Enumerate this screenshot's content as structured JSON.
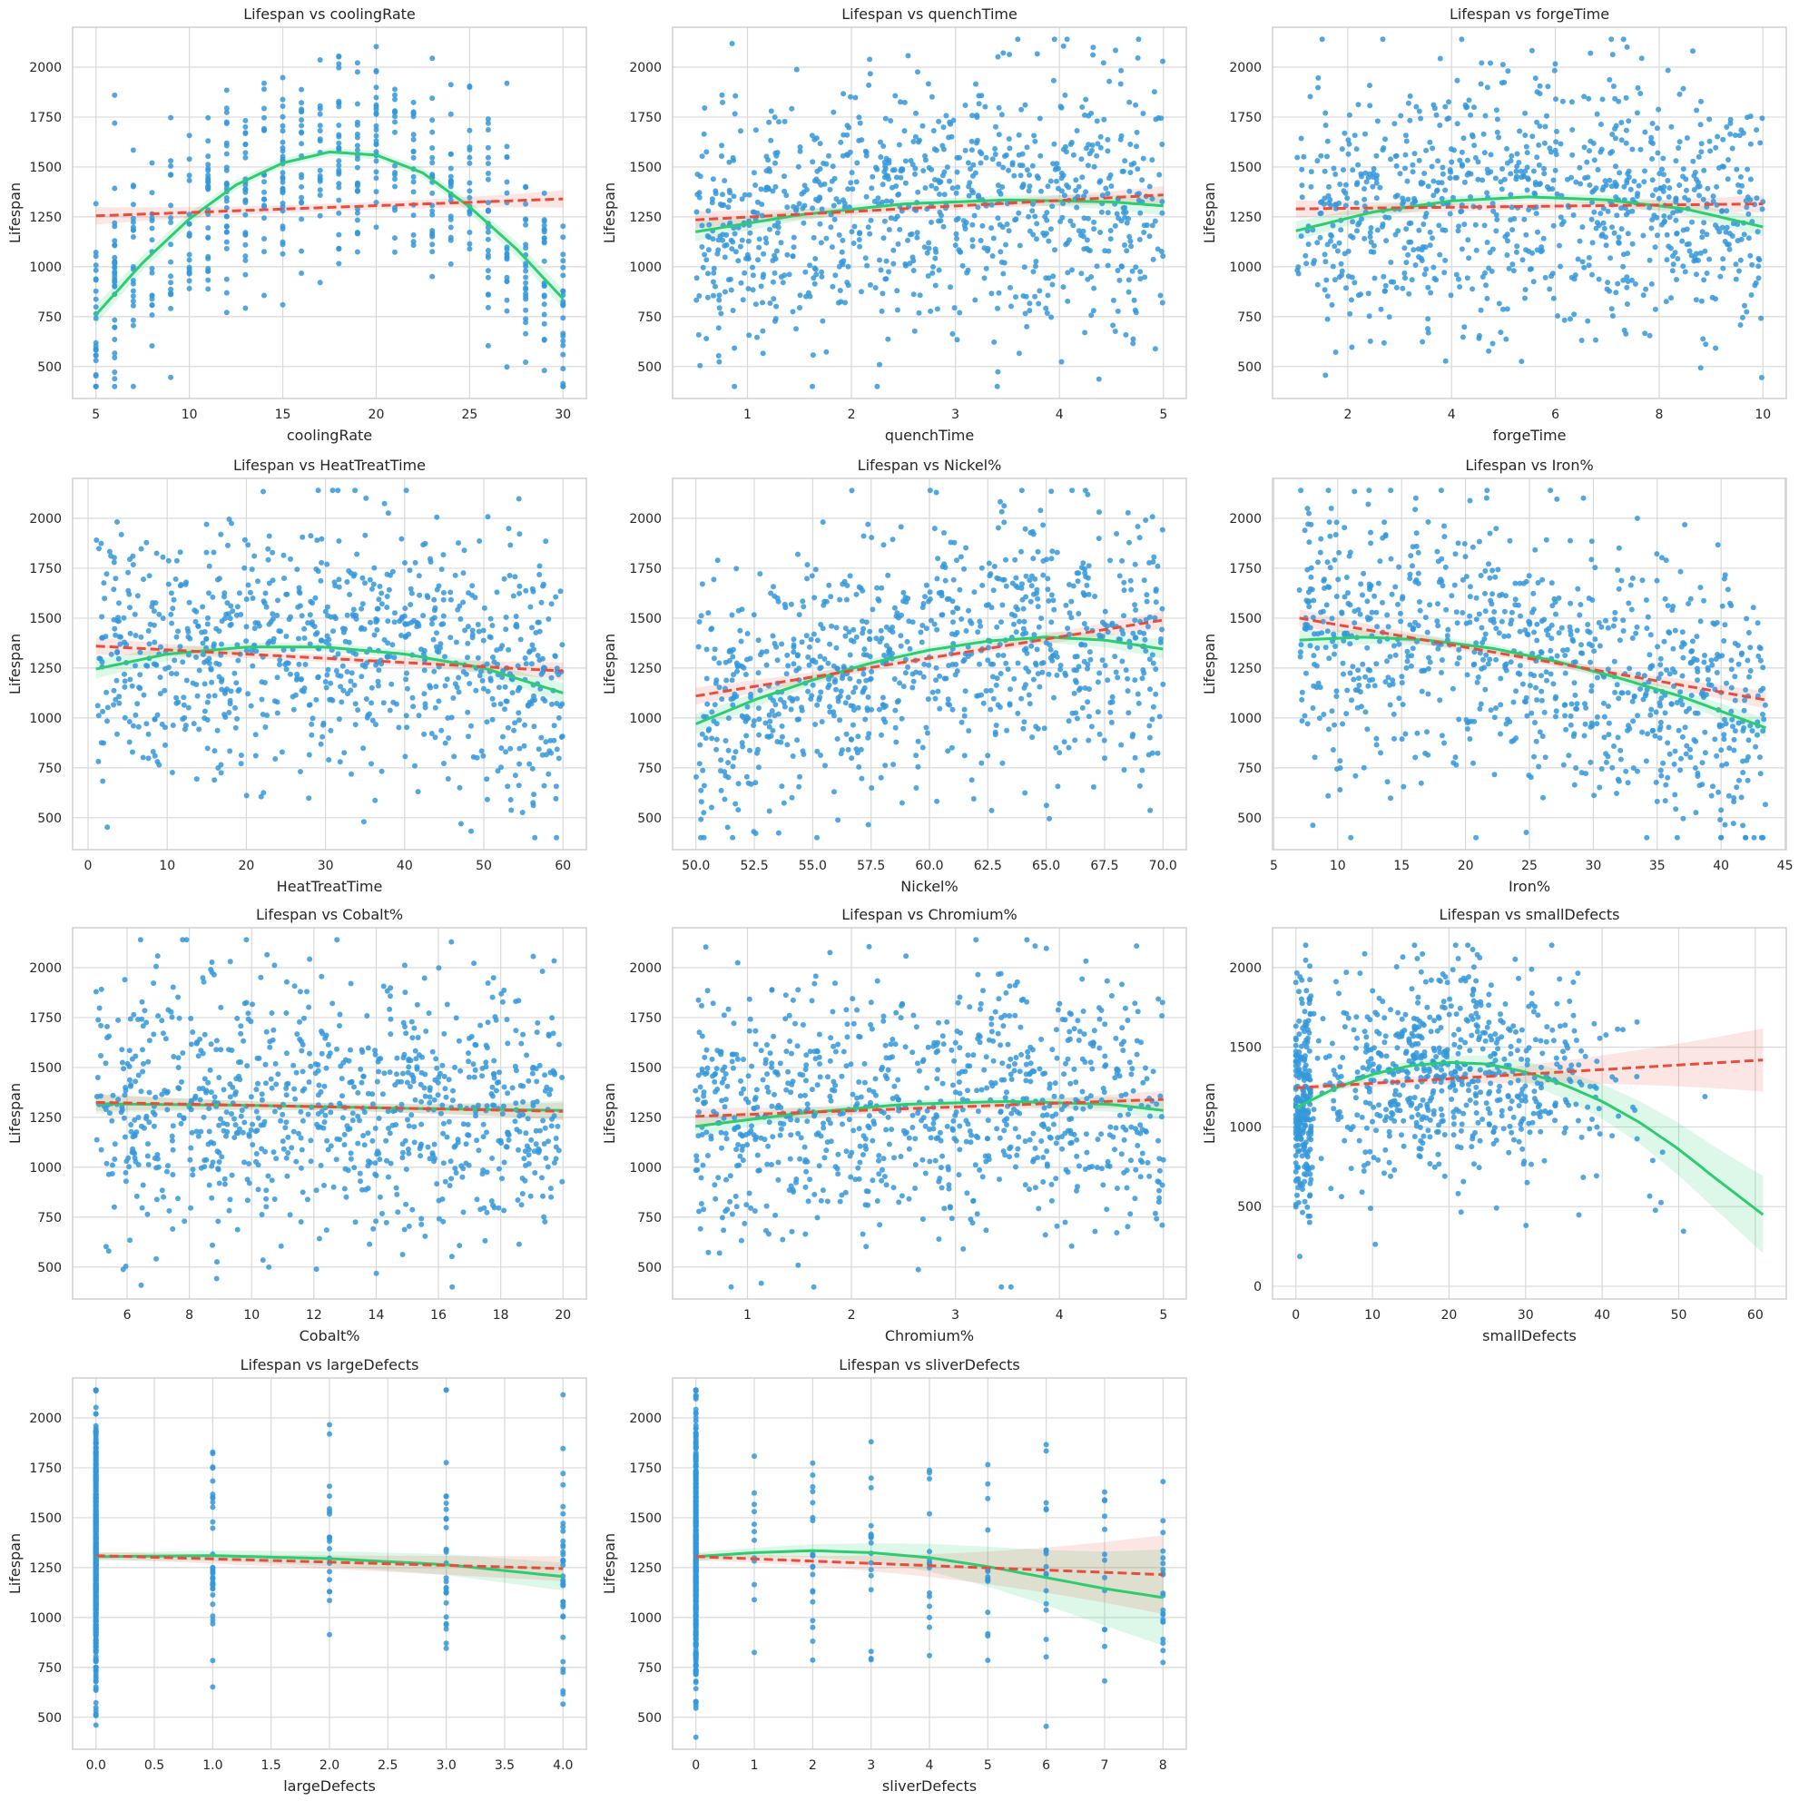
{
  "figure": {
    "colors": {
      "points": "#3498db",
      "linear_fit": "#e74c3c",
      "poly_fit": "#2ecc71",
      "grid": "#d9d9d9",
      "frame": "#cccccc"
    }
  },
  "chart_data": [
    {
      "type": "scatter",
      "title": "Lifespan vs coolingRate",
      "xlabel": "coolingRate",
      "ylabel": "Lifespan",
      "xlim": [
        3.75,
        31.25
      ],
      "ylim": [
        340,
        2200
      ],
      "xticks": [
        5,
        10,
        15,
        20,
        25,
        30
      ],
      "yticks": [
        500,
        750,
        1000,
        1250,
        1500,
        1750,
        2000
      ],
      "x_discrete": true,
      "x_min": 5,
      "x_max": 30,
      "y_center": 1300,
      "y_spread": 280,
      "n_points": 600,
      "seed": 11,
      "linear_fit": [
        [
          5,
          1255
        ],
        [
          30,
          1340
        ]
      ],
      "poly_fit": [
        [
          5,
          760
        ],
        [
          7.5,
          1020
        ],
        [
          10,
          1240
        ],
        [
          12.5,
          1410
        ],
        [
          15,
          1520
        ],
        [
          17.5,
          1575
        ],
        [
          20,
          1560
        ],
        [
          22.5,
          1470
        ],
        [
          25,
          1300
        ],
        [
          27.5,
          1090
        ],
        [
          30,
          840
        ]
      ],
      "ci": "narrow"
    },
    {
      "type": "scatter",
      "title": "Lifespan vs quenchTime",
      "xlabel": "quenchTime",
      "ylabel": "Lifespan",
      "xlim": [
        0.28,
        5.22
      ],
      "ylim": [
        340,
        2200
      ],
      "xticks": [
        1,
        2,
        3,
        4,
        5
      ],
      "yticks": [
        500,
        750,
        1000,
        1250,
        1500,
        1750,
        2000
      ],
      "x_discrete": false,
      "x_min": 0.5,
      "x_max": 5,
      "y_center": 1300,
      "y_spread": 320,
      "n_points": 900,
      "seed": 23,
      "linear_fit": [
        [
          0.5,
          1235
        ],
        [
          5,
          1360
        ]
      ],
      "poly_fit": [
        [
          0.5,
          1175
        ],
        [
          1.5,
          1260
        ],
        [
          2.5,
          1315
        ],
        [
          3.5,
          1335
        ],
        [
          4.5,
          1325
        ],
        [
          5,
          1305
        ]
      ],
      "ci": "narrow"
    },
    {
      "type": "scatter",
      "title": "Lifespan vs forgeTime",
      "xlabel": "forgeTime",
      "ylabel": "Lifespan",
      "xlim": [
        0.55,
        10.45
      ],
      "ylim": [
        340,
        2200
      ],
      "xticks": [
        2,
        4,
        6,
        8,
        10
      ],
      "yticks": [
        500,
        750,
        1000,
        1250,
        1500,
        1750,
        2000
      ],
      "x_discrete": false,
      "x_min": 1,
      "x_max": 10,
      "y_center": 1300,
      "y_spread": 320,
      "n_points": 900,
      "seed": 37,
      "linear_fit": [
        [
          1,
          1290
        ],
        [
          10,
          1315
        ]
      ],
      "poly_fit": [
        [
          1,
          1180
        ],
        [
          2.5,
          1275
        ],
        [
          4,
          1330
        ],
        [
          5.5,
          1350
        ],
        [
          7,
          1335
        ],
        [
          8.5,
          1290
        ],
        [
          10,
          1200
        ]
      ],
      "ci": "narrow"
    },
    {
      "type": "scatter",
      "title": "Lifespan vs HeatTreatTime",
      "xlabel": "HeatTreatTime",
      "ylabel": "Lifespan",
      "xlim": [
        -1.95,
        62.95
      ],
      "ylim": [
        340,
        2200
      ],
      "xticks": [
        0,
        10,
        20,
        30,
        40,
        50,
        60
      ],
      "yticks": [
        500,
        750,
        1000,
        1250,
        1500,
        1750,
        2000
      ],
      "x_discrete": false,
      "x_min": 1,
      "x_max": 60,
      "y_center": 1300,
      "y_spread": 320,
      "n_points": 900,
      "seed": 41,
      "linear_fit": [
        [
          1,
          1360
        ],
        [
          60,
          1235
        ]
      ],
      "poly_fit": [
        [
          1,
          1245
        ],
        [
          10,
          1320
        ],
        [
          20,
          1355
        ],
        [
          30,
          1355
        ],
        [
          40,
          1320
        ],
        [
          50,
          1250
        ],
        [
          60,
          1125
        ]
      ],
      "ci": "narrow"
    },
    {
      "type": "scatter",
      "title": "Lifespan vs Nickel%",
      "xlabel": "Nickel%",
      "ylabel": "Lifespan",
      "xlim": [
        49.0,
        71.0
      ],
      "ylim": [
        340,
        2200
      ],
      "xticks": [
        50.0,
        52.5,
        55.0,
        57.5,
        60.0,
        62.5,
        65.0,
        67.5,
        70.0
      ],
      "yticks": [
        500,
        750,
        1000,
        1250,
        1500,
        1750,
        2000
      ],
      "x_discrete": false,
      "x_min": 50,
      "x_max": 70,
      "y_center": 1300,
      "y_spread": 320,
      "n_points": 900,
      "seed": 53,
      "linear_fit": [
        [
          50,
          1110
        ],
        [
          70,
          1490
        ]
      ],
      "poly_fit": [
        [
          50,
          970
        ],
        [
          52.5,
          1090
        ],
        [
          55,
          1190
        ],
        [
          57.5,
          1275
        ],
        [
          60,
          1340
        ],
        [
          62.5,
          1385
        ],
        [
          65,
          1405
        ],
        [
          67.5,
          1390
        ],
        [
          70,
          1345
        ]
      ],
      "ci": "narrow"
    },
    {
      "type": "scatter",
      "title": "Lifespan vs Iron%",
      "xlabel": "Iron%",
      "ylabel": "Lifespan",
      "xlim": [
        4.9,
        45.1
      ],
      "ylim": [
        340,
        2200
      ],
      "xticks": [
        5,
        10,
        15,
        20,
        25,
        30,
        35,
        40,
        45
      ],
      "yticks": [
        500,
        750,
        1000,
        1250,
        1500,
        1750,
        2000
      ],
      "x_discrete": false,
      "x_min": 7,
      "x_max": 43.5,
      "y_center": 1300,
      "y_spread": 320,
      "n_points": 900,
      "seed": 67,
      "linear_fit": [
        [
          7,
          1500
        ],
        [
          43.5,
          1090
        ]
      ],
      "poly_fit": [
        [
          7,
          1390
        ],
        [
          12,
          1405
        ],
        [
          17,
          1390
        ],
        [
          22,
          1350
        ],
        [
          27,
          1285
        ],
        [
          32,
          1200
        ],
        [
          37,
          1105
        ],
        [
          43.5,
          950
        ]
      ],
      "ci": "narrow"
    },
    {
      "type": "scatter",
      "title": "Lifespan vs Cobalt%",
      "xlabel": "Cobalt%",
      "ylabel": "Lifespan",
      "xlim": [
        4.25,
        20.75
      ],
      "ylim": [
        340,
        2200
      ],
      "xticks": [
        6,
        8,
        10,
        12,
        14,
        16,
        18,
        20
      ],
      "yticks": [
        500,
        750,
        1000,
        1250,
        1500,
        1750,
        2000
      ],
      "x_discrete": false,
      "x_min": 5,
      "x_max": 20,
      "y_center": 1300,
      "y_spread": 320,
      "n_points": 900,
      "seed": 71,
      "linear_fit": [
        [
          5,
          1325
        ],
        [
          20,
          1280
        ]
      ],
      "poly_fit": [
        [
          5,
          1318
        ],
        [
          10,
          1310
        ],
        [
          15,
          1295
        ],
        [
          20,
          1285
        ]
      ],
      "ci": "narrow"
    },
    {
      "type": "scatter",
      "title": "Lifespan vs Chromium%",
      "xlabel": "Chromium%",
      "ylabel": "Lifespan",
      "xlim": [
        0.28,
        5.22
      ],
      "ylim": [
        340,
        2200
      ],
      "xticks": [
        1,
        2,
        3,
        4,
        5
      ],
      "yticks": [
        500,
        750,
        1000,
        1250,
        1500,
        1750,
        2000
      ],
      "x_discrete": false,
      "x_min": 0.5,
      "x_max": 5,
      "y_center": 1300,
      "y_spread": 320,
      "n_points": 900,
      "seed": 83,
      "linear_fit": [
        [
          0.5,
          1255
        ],
        [
          5,
          1340
        ]
      ],
      "poly_fit": [
        [
          0.5,
          1205
        ],
        [
          1.5,
          1270
        ],
        [
          2.5,
          1315
        ],
        [
          3.5,
          1330
        ],
        [
          4.5,
          1315
        ],
        [
          5,
          1285
        ]
      ],
      "ci": "narrow"
    },
    {
      "type": "scatter",
      "title": "Lifespan vs smallDefects",
      "xlabel": "smallDefects",
      "ylabel": "Lifespan",
      "xlim": [
        -3.05,
        64.05
      ],
      "ylim": [
        -80,
        2250
      ],
      "xticks": [
        0,
        10,
        20,
        30,
        40,
        50,
        60
      ],
      "yticks": [
        0,
        500,
        1000,
        1500,
        2000
      ],
      "x_discrete": false,
      "x_min": 0,
      "x_max": 61,
      "y_center": 1300,
      "y_spread": 320,
      "n_points": 900,
      "seed": 97,
      "linear_fit": [
        [
          0,
          1245
        ],
        [
          61,
          1420
        ]
      ],
      "poly_fit": [
        [
          0,
          1120
        ],
        [
          5,
          1240
        ],
        [
          10,
          1330
        ],
        [
          15,
          1385
        ],
        [
          20,
          1405
        ],
        [
          25,
          1395
        ],
        [
          30,
          1345
        ],
        [
          35,
          1265
        ],
        [
          40,
          1160
        ],
        [
          45,
          1025
        ],
        [
          50,
          860
        ],
        [
          55,
          670
        ],
        [
          61,
          450
        ]
      ],
      "ci": "wide_right"
    },
    {
      "type": "scatter",
      "title": "Lifespan vs largeDefects",
      "xlabel": "largeDefects",
      "ylabel": "Lifespan",
      "xlim": [
        -0.2,
        4.2
      ],
      "ylim": [
        340,
        2200
      ],
      "xticks": [
        0.0,
        0.5,
        1.0,
        1.5,
        2.0,
        2.5,
        3.0,
        3.5,
        4.0
      ],
      "yticks": [
        500,
        750,
        1000,
        1250,
        1500,
        1750,
        2000
      ],
      "x_discrete": true,
      "x_min": 0,
      "x_max": 4,
      "y_center": 1300,
      "y_spread": 320,
      "n_points": 700,
      "seed": 101,
      "linear_fit": [
        [
          0,
          1310
        ],
        [
          4,
          1245
        ]
      ],
      "poly_fit": [
        [
          0,
          1305
        ],
        [
          1,
          1310
        ],
        [
          2,
          1295
        ],
        [
          3,
          1265
        ],
        [
          4,
          1205
        ]
      ],
      "ci": "moderate"
    },
    {
      "type": "scatter",
      "title": "Lifespan vs sliverDefects",
      "xlabel": "sliverDefects",
      "ylabel": "Lifespan",
      "xlim": [
        -0.4,
        8.4
      ],
      "ylim": [
        340,
        2200
      ],
      "xticks": [
        0,
        1,
        2,
        3,
        4,
        5,
        6,
        7,
        8
      ],
      "yticks": [
        500,
        750,
        1000,
        1250,
        1500,
        1750,
        2000
      ],
      "x_discrete": true,
      "x_min": 0,
      "x_max": 8,
      "y_center": 1300,
      "y_spread": 320,
      "n_points": 600,
      "seed": 113,
      "linear_fit": [
        [
          0,
          1305
        ],
        [
          8,
          1215
        ]
      ],
      "poly_fit": [
        [
          0,
          1305
        ],
        [
          1,
          1325
        ],
        [
          2,
          1335
        ],
        [
          3,
          1325
        ],
        [
          4,
          1300
        ],
        [
          5,
          1255
        ],
        [
          6,
          1200
        ],
        [
          7,
          1145
        ],
        [
          8,
          1100
        ]
      ],
      "ci": "wide_right"
    }
  ]
}
